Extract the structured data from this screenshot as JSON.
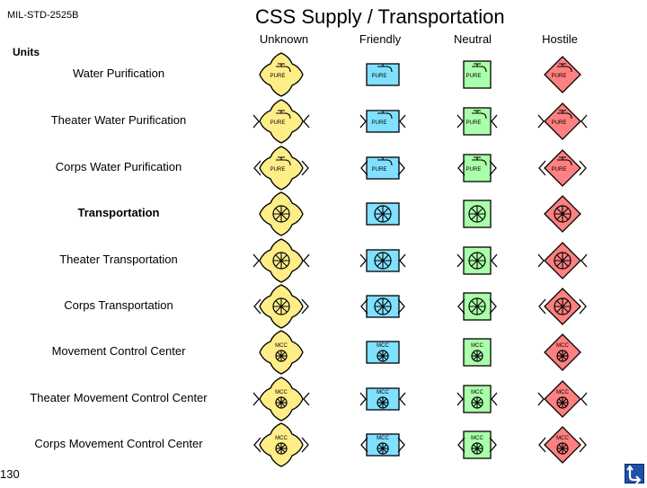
{
  "header": {
    "standard": "MIL-STD-2525B",
    "title": "CSS Supply / Transportation",
    "units_label": "Units",
    "page_number": "130"
  },
  "affiliations": [
    {
      "key": "unknown",
      "label": "Unknown",
      "fill": "#ffee88"
    },
    {
      "key": "friendly",
      "label": "Friendly",
      "fill": "#80e0ff"
    },
    {
      "key": "neutral",
      "label": "Neutral",
      "fill": "#aaffaa"
    },
    {
      "key": "hostile",
      "label": "Hostile",
      "fill": "#ff8080"
    }
  ],
  "rows": [
    {
      "label": "Water Purification",
      "type": "water",
      "echelon": "none",
      "bold": false,
      "text": "PURE"
    },
    {
      "label": "Theater Water Purification",
      "type": "water",
      "echelon": "theater",
      "bold": false,
      "text": "PURE"
    },
    {
      "label": "Corps Water Purification",
      "type": "water",
      "echelon": "corps",
      "bold": false,
      "text": "PURE"
    },
    {
      "label": "Transportation",
      "type": "trans",
      "echelon": "none",
      "bold": true
    },
    {
      "label": "Theater Transportation",
      "type": "trans",
      "echelon": "theater",
      "bold": false
    },
    {
      "label": "Corps Transportation",
      "type": "trans",
      "echelon": "corps",
      "bold": false
    },
    {
      "label": "Movement Control Center",
      "type": "mcc",
      "echelon": "none",
      "bold": false,
      "text": "MCC"
    },
    {
      "label": "Theater Movement Control Center",
      "type": "mcc",
      "echelon": "theater",
      "bold": false,
      "text": "MCC"
    },
    {
      "label": "Corps Movement Control Center",
      "type": "mcc",
      "echelon": "corps",
      "bold": false,
      "text": "MCC"
    }
  ],
  "icons": {
    "nav": "return-arrow-icon"
  }
}
